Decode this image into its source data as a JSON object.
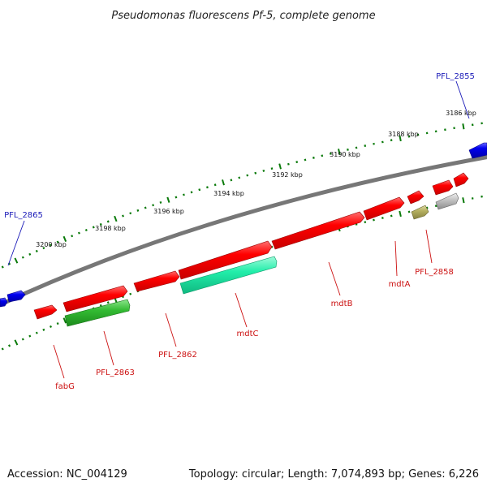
{
  "title": "Pseudomonas fluorescens Pf-5, complete genome",
  "ticks": [
    "3186 kbp",
    "3188 kbp",
    "3190 kbp",
    "3192 kbp",
    "3194 kbp",
    "3196 kbp",
    "3198 kbp",
    "3200 kbp"
  ],
  "gene_labels": {
    "pfl2855": "PFL_2855",
    "pfl2865": "PFL_2865",
    "pfl2858": "PFL_2858",
    "mdtA": "mdtA",
    "mdtB": "mdtB",
    "mdtC": "mdtC",
    "pfl2862": "PFL_2862",
    "pfl2863": "PFL_2863",
    "fabG": "fabG"
  },
  "footer": {
    "accession": "Accession: NC_004129",
    "summary": "Topology: circular; Length: 7,074,893 bp; Genes: 6,226"
  },
  "colors": {
    "gene_red": "#ff0000",
    "gene_blue": "#0000ee",
    "gene_green": "#33cc33",
    "gene_teal": "#22eeaa",
    "gene_olive": "#b5b060",
    "gene_grey": "#bbbbbb",
    "backbone": "#777777",
    "tick_green": "#0a7a0a"
  }
}
